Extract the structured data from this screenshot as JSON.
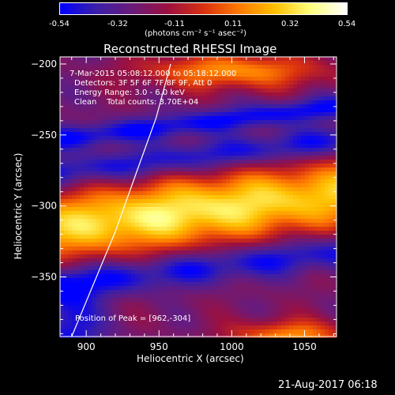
{
  "colorbar": {
    "ticks": [
      "-0.54",
      "-0.32",
      "-0.11",
      "0.11",
      "0.32",
      "0.54"
    ],
    "label": "(photons cm⁻² s⁻¹ asec⁻²)",
    "colors": [
      "#0000ff",
      "#3b1fa8",
      "#6a1b7a",
      "#9b1040",
      "#d83010",
      "#ff7a00",
      "#ffc000",
      "#ffff80",
      "#ffffff"
    ]
  },
  "title": "Reconstructed RHESSI Image",
  "annotations": {
    "time_range": "7-Mar-2015 05:08:12.000 to 05:18:12.000",
    "detectors": "Detectors: 3F 5F 6F 7F 8F 9F, Att 0",
    "energy": "Energy Range: 3.0 - 6.0 keV",
    "clean": "Clean    Total counts: 3.70E+04",
    "peak": "Position of Peak = [962,-304]"
  },
  "footer_date": "21-Aug-2017 06:18",
  "chart_data": {
    "type": "heatmap",
    "title": "Reconstructed RHESSI Image",
    "xlabel": "Heliocentric X (arcsec)",
    "ylabel": "Heliocentric Y (arcsec)",
    "xlim": [
      882,
      1072
    ],
    "ylim": [
      -392,
      -195
    ],
    "x_ticks": [
      900,
      950,
      1000,
      1050
    ],
    "y_ticks": [
      -200,
      -250,
      -300,
      -350
    ],
    "value_range": [
      -0.54,
      0.54
    ],
    "peak": [
      962,
      -304
    ],
    "limb_curve": [
      [
        890,
        -392
      ],
      [
        905,
        -355
      ],
      [
        920,
        -318
      ],
      [
        935,
        -275
      ],
      [
        948,
        -238
      ],
      [
        958,
        -200
      ]
    ],
    "colors": {
      "axis": "#ffffff",
      "background": "#000000"
    }
  }
}
